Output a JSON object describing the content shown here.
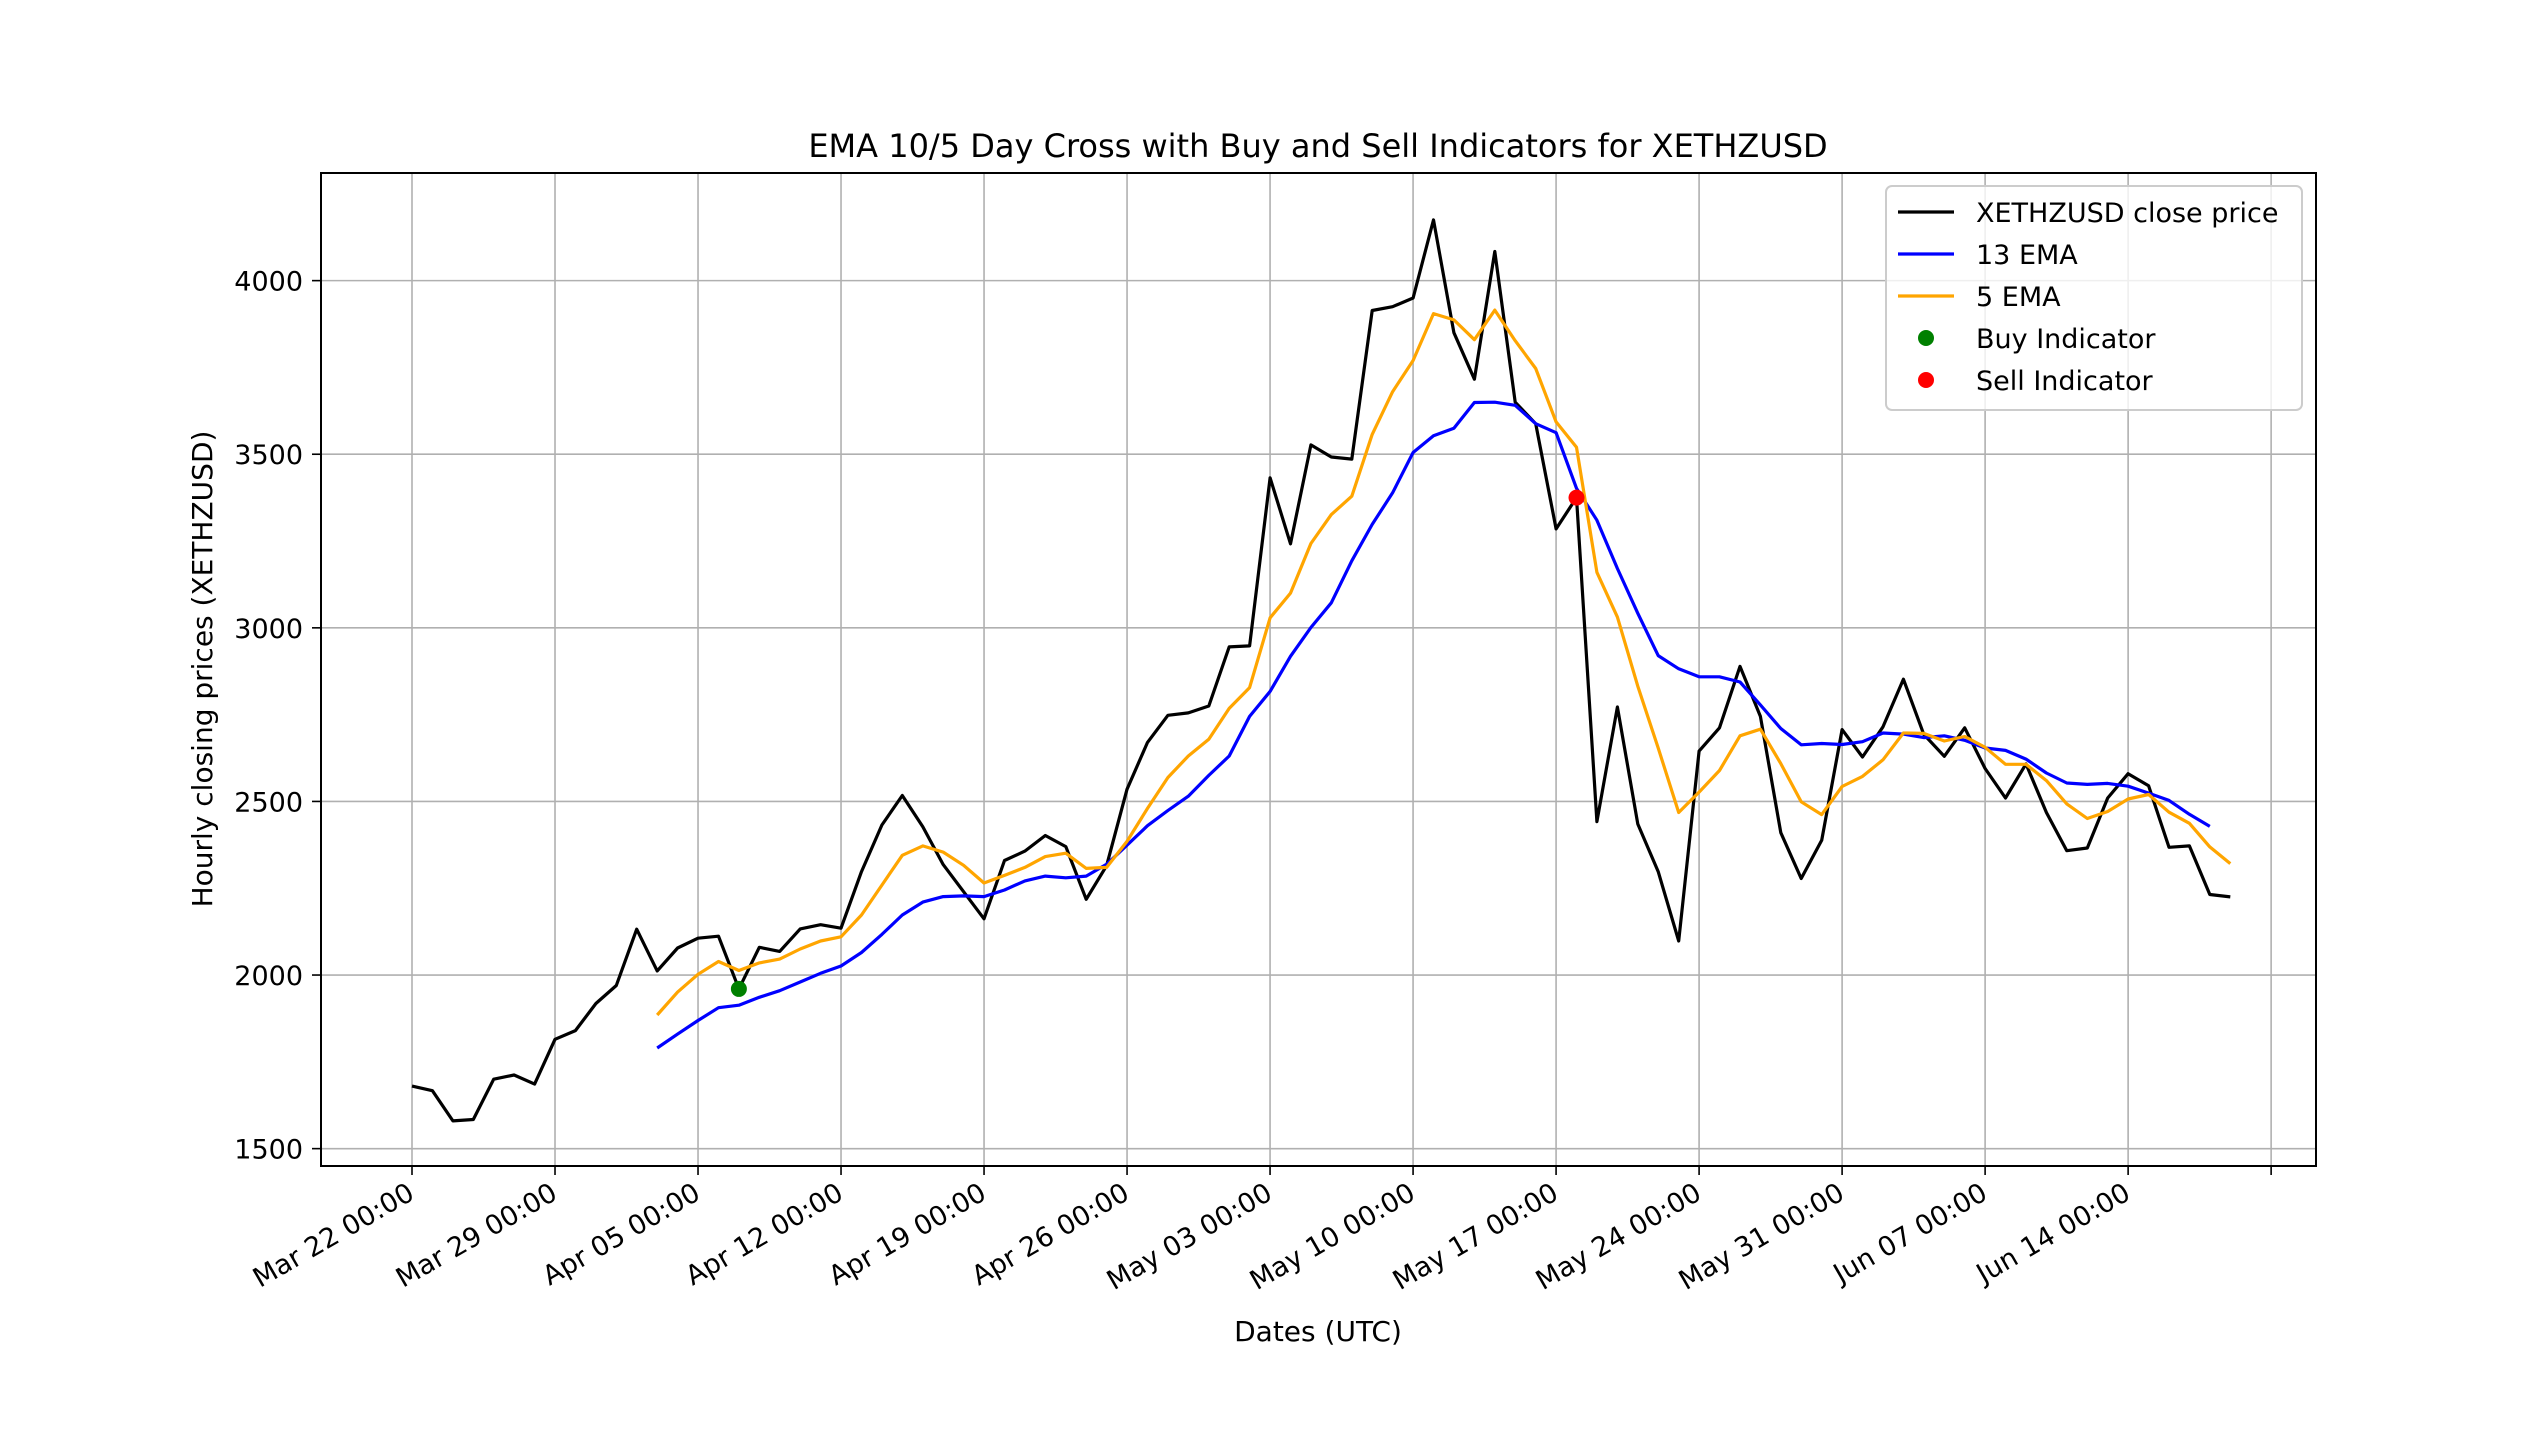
{
  "chart_data": {
    "type": "line",
    "title": "EMA 10/5 Day Cross with Buy and Sell Indicators for XETHZUSD",
    "xlabel": "Dates (UTC)",
    "ylabel": "Hourly closing prices (XETHZUSD)",
    "x_start": "2021-03-22",
    "x_ticks": [
      "Mar 22 00:00",
      "Mar 29 00:00",
      "Apr 05 00:00",
      "Apr 12 00:00",
      "Apr 19 00:00",
      "Apr 26 00:00",
      "May 03 00:00",
      "May 10 00:00",
      "May 17 00:00",
      "May 24 00:00",
      "May 31 00:00",
      "Jun 07 00:00",
      "Jun 14 00:00"
    ],
    "ylim": [
      1450,
      4310
    ],
    "yticks": [
      1500,
      2000,
      2500,
      3000,
      3500,
      4000
    ],
    "grid": true,
    "legend": "top-right",
    "series": [
      {
        "name": "XETHZUSD close price",
        "color": "#000000",
        "start_day": 0,
        "values": [
          1680,
          1667,
          1580,
          1584,
          1700,
          1712,
          1686,
          1815,
          1840,
          1918,
          1970,
          2132,
          2012,
          2078,
          2106,
          2112,
          1960,
          2080,
          2068,
          2133,
          2145,
          2135,
          2298,
          2432,
          2517,
          2427,
          2318,
          2240,
          2162,
          2330,
          2357,
          2402,
          2370,
          2218,
          2315,
          2535,
          2670,
          2748,
          2755,
          2775,
          2945,
          2948,
          3432,
          3242,
          3527,
          3492,
          3486,
          3914,
          3925,
          3950,
          4175,
          3850,
          3716,
          4084,
          3650,
          3588,
          3285,
          3375,
          2442,
          2772,
          2435,
          2298,
          2098,
          2645,
          2712,
          2889,
          2745,
          2410,
          2278,
          2388,
          2707,
          2628,
          2715,
          2852,
          2693,
          2630,
          2712,
          2595,
          2510,
          2608,
          2468,
          2358,
          2366,
          2510,
          2580,
          2545,
          2368,
          2372,
          2232,
          2225
        ]
      },
      {
        "name": "13 EMA",
        "color": "#0000ff",
        "start_day": 12,
        "values": [
          1790,
          1830,
          1869,
          1906,
          1913,
          1936,
          1955,
          1980,
          2005,
          2026,
          2065,
          2117,
          2173,
          2210,
          2226,
          2228,
          2226,
          2245,
          2271,
          2285,
          2280,
          2285,
          2319,
          2374,
          2430,
          2474,
          2515,
          2575,
          2631,
          2745,
          2817,
          2918,
          3001,
          3072,
          3193,
          3298,
          3389,
          3505,
          3553,
          3575,
          3649,
          3650,
          3641,
          3588,
          3562,
          3402,
          3310,
          3171,
          3042,
          2920,
          2882,
          2859,
          2859,
          2844,
          2778,
          2710,
          2663,
          2667,
          2664,
          2672,
          2697,
          2694,
          2684,
          2689,
          2676,
          2654,
          2647,
          2622,
          2582,
          2553,
          2549,
          2552,
          2544,
          2524,
          2503,
          2463,
          2428
        ]
      },
      {
        "name": "5 EMA",
        "color": "#ffa500",
        "start_day": 12,
        "values": [
          1885,
          1951,
          2002,
          2039,
          2013,
          2035,
          2046,
          2075,
          2098,
          2110,
          2173,
          2259,
          2345,
          2372,
          2354,
          2316,
          2265,
          2287,
          2310,
          2341,
          2351,
          2307,
          2310,
          2385,
          2480,
          2569,
          2631,
          2679,
          2768,
          2828,
          3029,
          3100,
          3243,
          3326,
          3379,
          3557,
          3680,
          3770,
          3905,
          3887,
          3830,
          3915,
          3827,
          3747,
          3593,
          3520,
          3160,
          3031,
          2832,
          2654,
          2468,
          2527,
          2589,
          2689,
          2708,
          2609,
          2499,
          2462,
          2543,
          2572,
          2620,
          2697,
          2696,
          2674,
          2687,
          2656,
          2607,
          2607,
          2560,
          2493,
          2451,
          2471,
          2507,
          2520,
          2469,
          2437,
          2369,
          2321
        ]
      }
    ],
    "markers": [
      {
        "name": "Buy Indicator",
        "color": "#008000",
        "date": "Apr 07",
        "day": 16,
        "y": 1960
      },
      {
        "name": "Sell Indicator",
        "color": "#ff0000",
        "date": "May 18",
        "day": 57,
        "y": 3375
      }
    ]
  }
}
